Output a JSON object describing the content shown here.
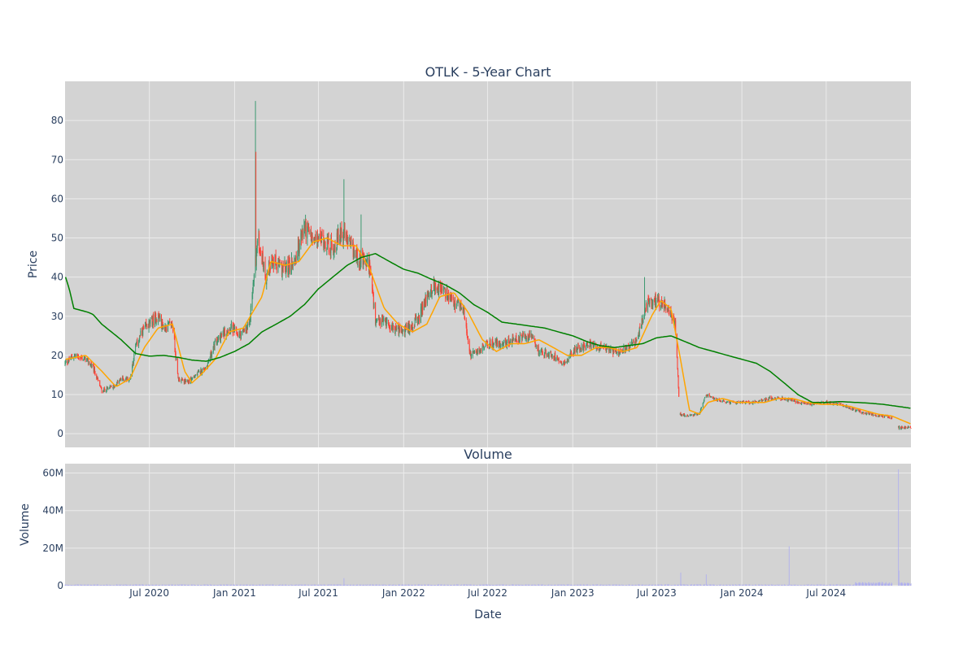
{
  "chart_data": {
    "type": "candlestick",
    "title": "OTLK - 5-Year Chart",
    "price_ylabel": "Price",
    "volume_title": "Volume",
    "volume_ylabel": "Volume",
    "xlabel": "Date",
    "x_ticks": [
      "Jul 2020",
      "Jan 2021",
      "Jul 2021",
      "Jan 2022",
      "Jul 2022",
      "Jan 2023",
      "Jul 2023",
      "Jan 2024",
      "Jul 2024"
    ],
    "x_tick_dates": [
      "2020-07-01",
      "2021-01-01",
      "2021-07-01",
      "2022-01-01",
      "2022-07-01",
      "2023-01-01",
      "2023-07-01",
      "2024-01-01",
      "2024-07-01"
    ],
    "x_range": [
      "2020-01-01",
      "2024-12-31"
    ],
    "price_yticks": [
      "0",
      "10",
      "20",
      "30",
      "40",
      "50",
      "60",
      "70",
      "80"
    ],
    "price_ylim": [
      -3.5,
      90
    ],
    "volume_yticks": [
      "0",
      "20M",
      "40M",
      "60M"
    ],
    "volume_ylim": [
      0,
      65000000
    ],
    "colors": {
      "plot_bg": "#d3d3d3",
      "grid": "#ebebeb",
      "increasing": "#3d9970",
      "decreasing": "#ff4136",
      "ma_short": "#ffa500",
      "ma_long": "#008000",
      "volume_bar": "#b0b0ee",
      "text": "#2a3f5f"
    },
    "price_anchors": [
      [
        "2020-01-02",
        18
      ],
      [
        "2020-01-20",
        20
      ],
      [
        "2020-02-15",
        19
      ],
      [
        "2020-03-01",
        17
      ],
      [
        "2020-03-20",
        11
      ],
      [
        "2020-04-15",
        12
      ],
      [
        "2020-05-01",
        14
      ],
      [
        "2020-05-20",
        14
      ],
      [
        "2020-06-01",
        22
      ],
      [
        "2020-06-15",
        26
      ],
      [
        "2020-07-01",
        28
      ],
      [
        "2020-07-20",
        30
      ],
      [
        "2020-08-01",
        27
      ],
      [
        "2020-08-20",
        28
      ],
      [
        "2020-09-01",
        14
      ],
      [
        "2020-09-20",
        13
      ],
      [
        "2020-10-10",
        15
      ],
      [
        "2020-11-01",
        17
      ],
      [
        "2020-11-20",
        23
      ],
      [
        "2020-12-10",
        26
      ],
      [
        "2020-12-25",
        27
      ],
      [
        "2021-01-10",
        25
      ],
      [
        "2021-02-01",
        27
      ],
      [
        "2021-02-20",
        50
      ],
      [
        "2021-03-10",
        40
      ],
      [
        "2021-03-20",
        44
      ],
      [
        "2021-04-20",
        42
      ],
      [
        "2021-05-10",
        44
      ],
      [
        "2021-06-01",
        53
      ],
      [
        "2021-06-20",
        49
      ],
      [
        "2021-07-10",
        50
      ],
      [
        "2021-08-01",
        47
      ],
      [
        "2021-08-20",
        52
      ],
      [
        "2021-09-10",
        47
      ],
      [
        "2021-10-01",
        44
      ],
      [
        "2021-10-20",
        43
      ],
      [
        "2021-11-01",
        28
      ],
      [
        "2021-11-20",
        29
      ],
      [
        "2021-12-10",
        27
      ],
      [
        "2022-01-01",
        26
      ],
      [
        "2022-02-01",
        29
      ],
      [
        "2022-02-20",
        35
      ],
      [
        "2022-03-10",
        38
      ],
      [
        "2022-04-01",
        36
      ],
      [
        "2022-04-20",
        33
      ],
      [
        "2022-05-10",
        32
      ],
      [
        "2022-05-25",
        20
      ],
      [
        "2022-06-10",
        21
      ],
      [
        "2022-07-01",
        23
      ],
      [
        "2022-08-01",
        23
      ],
      [
        "2022-09-01",
        24
      ],
      [
        "2022-10-01",
        25
      ],
      [
        "2022-10-20",
        21
      ],
      [
        "2022-11-20",
        20
      ],
      [
        "2022-12-15",
        18
      ],
      [
        "2023-01-01",
        21
      ],
      [
        "2023-02-01",
        23
      ],
      [
        "2023-03-01",
        22
      ],
      [
        "2023-04-01",
        21
      ],
      [
        "2023-05-01",
        22
      ],
      [
        "2023-05-20",
        24
      ],
      [
        "2023-06-10",
        33
      ],
      [
        "2023-07-01",
        34
      ],
      [
        "2023-07-20",
        33
      ],
      [
        "2023-08-10",
        28
      ],
      [
        "2023-08-20",
        5
      ],
      [
        "2023-09-10",
        4.5
      ],
      [
        "2023-10-01",
        5
      ],
      [
        "2023-10-15",
        10
      ],
      [
        "2023-11-01",
        9
      ],
      [
        "2023-12-01",
        8
      ],
      [
        "2024-01-01",
        8
      ],
      [
        "2024-02-01",
        8
      ],
      [
        "2024-03-01",
        9
      ],
      [
        "2024-04-01",
        9
      ],
      [
        "2024-05-01",
        8
      ],
      [
        "2024-06-01",
        7.5
      ],
      [
        "2024-07-01",
        8
      ],
      [
        "2024-08-01",
        7.5
      ],
      [
        "2024-09-01",
        6
      ],
      [
        "2024-10-01",
        5
      ],
      [
        "2024-11-01",
        4.5
      ],
      [
        "2024-11-20",
        4
      ],
      [
        "2024-12-05",
        1.5
      ],
      [
        "2024-12-31",
        1.7
      ]
    ],
    "price_spikes": [
      [
        "2021-02-15",
        85
      ],
      [
        "2021-02-16",
        72
      ],
      [
        "2021-08-25",
        65
      ],
      [
        "2021-10-01",
        56
      ],
      [
        "2023-06-05",
        40
      ],
      [
        "2022-05-20",
        25
      ],
      [
        "2023-10-15",
        18
      ]
    ],
    "price_gaps": [
      [
        "2024-11-20",
        "2024-12-04"
      ]
    ],
    "ma_short_anchors": [
      [
        "2020-01-02",
        19
      ],
      [
        "2020-02-15",
        20
      ],
      [
        "2020-03-20",
        16
      ],
      [
        "2020-04-20",
        12
      ],
      [
        "2020-05-20",
        14
      ],
      [
        "2020-06-20",
        22
      ],
      [
        "2020-07-20",
        27
      ],
      [
        "2020-08-20",
        28
      ],
      [
        "2020-09-15",
        16
      ],
      [
        "2020-10-01",
        13
      ],
      [
        "2020-10-20",
        15
      ],
      [
        "2020-11-20",
        19
      ],
      [
        "2020-12-20",
        26
      ],
      [
        "2021-01-20",
        27
      ],
      [
        "2021-03-01",
        35
      ],
      [
        "2021-03-20",
        44
      ],
      [
        "2021-04-20",
        43
      ],
      [
        "2021-05-20",
        44
      ],
      [
        "2021-06-20",
        49
      ],
      [
        "2021-07-20",
        50
      ],
      [
        "2021-08-20",
        48
      ],
      [
        "2021-09-20",
        48
      ],
      [
        "2021-10-20",
        42
      ],
      [
        "2021-11-20",
        32
      ],
      [
        "2021-12-20",
        28
      ],
      [
        "2022-01-20",
        26
      ],
      [
        "2022-02-20",
        28
      ],
      [
        "2022-03-20",
        35
      ],
      [
        "2022-04-20",
        36
      ],
      [
        "2022-05-20",
        31
      ],
      [
        "2022-06-20",
        24
      ],
      [
        "2022-07-20",
        21
      ],
      [
        "2022-08-20",
        23
      ],
      [
        "2022-09-20",
        23
      ],
      [
        "2022-10-20",
        24
      ],
      [
        "2022-11-20",
        22
      ],
      [
        "2022-12-20",
        20
      ],
      [
        "2023-01-20",
        20
      ],
      [
        "2023-02-20",
        22
      ],
      [
        "2023-03-20",
        22
      ],
      [
        "2023-04-20",
        21
      ],
      [
        "2023-05-20",
        22
      ],
      [
        "2023-06-20",
        30
      ],
      [
        "2023-07-10",
        34
      ],
      [
        "2023-08-01",
        32
      ],
      [
        "2023-08-20",
        20
      ],
      [
        "2023-09-10",
        6
      ],
      [
        "2023-10-01",
        5
      ],
      [
        "2023-10-20",
        8
      ],
      [
        "2023-11-20",
        9
      ],
      [
        "2023-12-20",
        8
      ],
      [
        "2024-01-20",
        8
      ],
      [
        "2024-02-20",
        8
      ],
      [
        "2024-03-20",
        9
      ],
      [
        "2024-04-20",
        9
      ],
      [
        "2024-05-20",
        8
      ],
      [
        "2024-06-20",
        7.5
      ],
      [
        "2024-07-20",
        7.5
      ],
      [
        "2024-08-20",
        7
      ],
      [
        "2024-09-20",
        6
      ],
      [
        "2024-10-20",
        5
      ],
      [
        "2024-11-20",
        4.5
      ],
      [
        "2024-12-31",
        2.5
      ]
    ],
    "ma_long_anchors": [
      [
        "2020-01-02",
        40
      ],
      [
        "2020-01-10",
        37
      ],
      [
        "2020-01-20",
        32
      ],
      [
        "2020-02-20",
        31
      ],
      [
        "2020-03-01",
        30.5
      ],
      [
        "2020-03-20",
        28
      ],
      [
        "2020-05-01",
        24
      ],
      [
        "2020-06-01",
        20.5
      ],
      [
        "2020-07-01",
        19.8
      ],
      [
        "2020-08-01",
        20
      ],
      [
        "2020-09-01",
        19.5
      ],
      [
        "2020-10-01",
        18.8
      ],
      [
        "2020-11-01",
        18.5
      ],
      [
        "2020-12-01",
        19.5
      ],
      [
        "2021-01-01",
        21
      ],
      [
        "2021-02-01",
        23
      ],
      [
        "2021-03-01",
        26
      ],
      [
        "2021-04-01",
        28
      ],
      [
        "2021-05-01",
        30
      ],
      [
        "2021-06-01",
        33
      ],
      [
        "2021-07-01",
        37
      ],
      [
        "2021-08-01",
        40
      ],
      [
        "2021-09-01",
        43
      ],
      [
        "2021-10-01",
        45
      ],
      [
        "2021-11-01",
        46
      ],
      [
        "2021-12-01",
        44
      ],
      [
        "2022-01-01",
        42
      ],
      [
        "2022-02-01",
        41
      ],
      [
        "2022-03-01",
        39.5
      ],
      [
        "2022-04-01",
        38
      ],
      [
        "2022-05-01",
        36
      ],
      [
        "2022-06-01",
        33
      ],
      [
        "2022-07-01",
        31
      ],
      [
        "2022-08-01",
        28.5
      ],
      [
        "2022-09-01",
        28
      ],
      [
        "2022-10-01",
        27.5
      ],
      [
        "2022-11-01",
        27
      ],
      [
        "2022-12-01",
        26
      ],
      [
        "2023-01-01",
        25
      ],
      [
        "2023-02-01",
        23.5
      ],
      [
        "2023-03-01",
        22.5
      ],
      [
        "2023-04-01",
        22
      ],
      [
        "2023-05-01",
        22.5
      ],
      [
        "2023-06-01",
        23
      ],
      [
        "2023-07-01",
        24.5
      ],
      [
        "2023-08-01",
        25
      ],
      [
        "2023-09-01",
        23.5
      ],
      [
        "2023-10-01",
        22
      ],
      [
        "2023-11-01",
        21
      ],
      [
        "2023-12-01",
        20
      ],
      [
        "2024-01-01",
        19
      ],
      [
        "2024-02-01",
        18
      ],
      [
        "2024-03-01",
        16
      ],
      [
        "2024-04-01",
        13
      ],
      [
        "2024-05-01",
        10
      ],
      [
        "2024-06-01",
        8
      ],
      [
        "2024-07-01",
        8
      ],
      [
        "2024-08-01",
        8.2
      ],
      [
        "2024-09-01",
        8
      ],
      [
        "2024-10-01",
        7.8
      ],
      [
        "2024-11-01",
        7.5
      ],
      [
        "2024-12-01",
        7
      ],
      [
        "2024-12-31",
        6.5
      ]
    ],
    "volume_spikes": [
      [
        "2021-08-25",
        4000000
      ],
      [
        "2023-08-22",
        7000000
      ],
      [
        "2023-10-16",
        6000000
      ],
      [
        "2024-04-12",
        21000000
      ],
      [
        "2024-12-04",
        62000000
      ],
      [
        "2024-12-05",
        8000000
      ]
    ]
  }
}
